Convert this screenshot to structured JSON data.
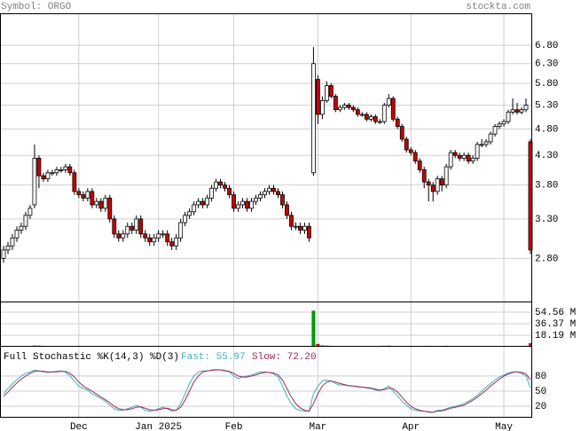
{
  "header": {
    "symbol": "Symbol: ORGO",
    "source": "stockta.com"
  },
  "chart_data": [
    {
      "type": "candlestick",
      "log_scale": true,
      "grid": true,
      "up_color": "#ffffff",
      "down_color": "#cc0000",
      "categories": [
        null,
        null,
        null,
        null,
        null,
        null,
        null,
        null,
        null,
        null,
        null,
        null,
        null,
        null,
        null,
        null,
        null,
        "Dec",
        null,
        null,
        null,
        null,
        null,
        null,
        null,
        null,
        null,
        null,
        null,
        null,
        null,
        null,
        null,
        null,
        null,
        "Jan 2025",
        null,
        null,
        null,
        null,
        null,
        null,
        null,
        null,
        null,
        null,
        null,
        null,
        null,
        null,
        null,
        null,
        "Feb",
        null,
        null,
        null,
        null,
        null,
        null,
        null,
        null,
        null,
        null,
        null,
        null,
        null,
        null,
        null,
        null,
        null,
        null,
        "Mar",
        null,
        null,
        null,
        null,
        null,
        null,
        null,
        null,
        null,
        null,
        null,
        null,
        null,
        null,
        null,
        null,
        null,
        null,
        null,
        null,
        "Apr",
        null,
        null,
        null,
        null,
        null,
        null,
        null,
        null,
        null,
        null,
        null,
        null,
        null,
        null,
        null,
        null,
        null,
        null,
        null,
        null,
        "May",
        null,
        null,
        null,
        null,
        null,
        null
      ],
      "open": [
        2.8,
        2.9,
        2.95,
        3.05,
        3.15,
        3.2,
        3.35,
        3.5,
        4.25,
        3.95,
        3.9,
        4.0,
        4.0,
        4.05,
        4.05,
        4.1,
        4.0,
        3.7,
        3.65,
        3.6,
        3.7,
        3.5,
        3.55,
        3.45,
        3.6,
        3.3,
        3.1,
        3.05,
        3.1,
        3.2,
        3.15,
        3.3,
        3.1,
        3.05,
        3.0,
        3.05,
        3.1,
        3.1,
        3.0,
        2.95,
        3.05,
        3.25,
        3.35,
        3.4,
        3.5,
        3.55,
        3.5,
        3.6,
        3.75,
        3.85,
        3.8,
        3.75,
        3.65,
        3.45,
        3.5,
        3.55,
        3.45,
        3.55,
        3.6,
        3.65,
        3.7,
        3.75,
        3.7,
        3.65,
        3.5,
        3.35,
        3.2,
        3.2,
        3.15,
        3.2,
        4.0,
        5.9,
        5.1,
        5.4,
        5.75,
        5.5,
        5.2,
        5.25,
        5.3,
        5.25,
        5.2,
        5.1,
        5.1,
        5.0,
        5.05,
        4.95,
        4.95,
        5.3,
        5.45,
        5.0,
        4.85,
        4.6,
        4.4,
        4.35,
        4.2,
        4.05,
        3.85,
        3.8,
        3.7,
        3.9,
        3.8,
        4.1,
        4.35,
        4.3,
        4.25,
        4.3,
        4.2,
        4.25,
        4.5,
        4.5,
        4.55,
        4.7,
        4.85,
        4.9,
        4.95,
        5.15,
        5.2,
        5.15,
        5.2,
        4.55
      ],
      "high": [
        2.95,
        3.0,
        3.1,
        3.2,
        3.25,
        3.4,
        3.5,
        4.5,
        4.3,
        4.0,
        4.05,
        4.05,
        4.1,
        4.1,
        4.15,
        4.15,
        4.05,
        3.75,
        3.7,
        3.75,
        3.75,
        3.6,
        3.6,
        3.65,
        3.65,
        3.35,
        3.15,
        3.15,
        3.25,
        3.25,
        3.35,
        3.35,
        3.15,
        3.1,
        3.1,
        3.15,
        3.15,
        3.15,
        3.05,
        3.1,
        3.3,
        3.4,
        3.45,
        3.55,
        3.6,
        3.6,
        3.65,
        3.8,
        3.9,
        3.9,
        3.85,
        3.8,
        3.7,
        3.55,
        3.6,
        3.6,
        3.6,
        3.65,
        3.7,
        3.75,
        3.8,
        3.8,
        3.75,
        3.7,
        3.55,
        3.4,
        3.25,
        3.25,
        3.25,
        3.25,
        6.75,
        6.0,
        5.5,
        5.85,
        5.8,
        5.55,
        5.3,
        5.35,
        5.35,
        5.3,
        5.25,
        5.15,
        5.15,
        5.1,
        5.1,
        5.0,
        5.35,
        5.55,
        5.5,
        5.05,
        4.9,
        4.65,
        4.45,
        4.4,
        4.25,
        4.1,
        3.9,
        3.85,
        3.95,
        3.95,
        4.15,
        4.4,
        4.4,
        4.35,
        4.35,
        4.35,
        4.3,
        4.55,
        4.6,
        4.6,
        4.75,
        4.9,
        4.95,
        5.0,
        5.2,
        5.45,
        5.35,
        5.25,
        5.45,
        4.6
      ],
      "low": [
        2.75,
        2.85,
        2.9,
        3.0,
        3.1,
        3.15,
        3.3,
        3.45,
        3.75,
        3.85,
        3.85,
        3.95,
        3.95,
        4.0,
        4.0,
        3.95,
        3.65,
        3.6,
        3.55,
        3.55,
        3.45,
        3.45,
        3.4,
        3.4,
        3.25,
        3.05,
        3.0,
        3.0,
        3.05,
        3.1,
        3.1,
        3.05,
        3.0,
        2.95,
        2.95,
        3.0,
        3.05,
        2.95,
        2.9,
        2.9,
        3.0,
        3.2,
        3.3,
        3.35,
        3.45,
        3.45,
        3.45,
        3.55,
        3.7,
        3.75,
        3.7,
        3.6,
        3.4,
        3.4,
        3.45,
        3.4,
        3.4,
        3.5,
        3.55,
        3.6,
        3.65,
        3.65,
        3.6,
        3.45,
        3.3,
        3.15,
        3.15,
        3.1,
        3.1,
        3.0,
        3.95,
        4.9,
        5.0,
        5.35,
        5.45,
        5.15,
        5.15,
        5.2,
        5.2,
        5.15,
        5.05,
        5.05,
        4.95,
        4.95,
        4.9,
        4.9,
        4.9,
        5.25,
        4.95,
        4.8,
        4.55,
        4.35,
        4.3,
        4.15,
        4.0,
        3.75,
        3.55,
        3.55,
        3.65,
        3.7,
        3.75,
        4.05,
        4.25,
        4.2,
        4.2,
        4.15,
        4.15,
        4.2,
        4.45,
        4.45,
        4.5,
        4.65,
        4.8,
        4.85,
        4.9,
        5.1,
        5.1,
        5.1,
        5.15,
        2.85
      ],
      "close": [
        2.9,
        2.95,
        3.05,
        3.15,
        3.2,
        3.35,
        3.45,
        4.25,
        3.95,
        3.9,
        4.0,
        4.0,
        4.05,
        4.05,
        4.1,
        4.0,
        3.7,
        3.65,
        3.6,
        3.7,
        3.5,
        3.55,
        3.45,
        3.6,
        3.3,
        3.1,
        3.05,
        3.1,
        3.2,
        3.15,
        3.3,
        3.1,
        3.05,
        3.0,
        3.05,
        3.1,
        3.1,
        3.0,
        2.95,
        3.05,
        3.25,
        3.35,
        3.4,
        3.5,
        3.55,
        3.5,
        3.6,
        3.75,
        3.85,
        3.8,
        3.75,
        3.65,
        3.45,
        3.5,
        3.55,
        3.45,
        3.55,
        3.6,
        3.65,
        3.7,
        3.75,
        3.7,
        3.65,
        3.5,
        3.35,
        3.2,
        3.2,
        3.15,
        3.2,
        3.05,
        6.3,
        5.1,
        5.4,
        5.75,
        5.5,
        5.2,
        5.25,
        5.3,
        5.25,
        5.2,
        5.1,
        5.1,
        5.0,
        5.05,
        4.95,
        4.95,
        5.3,
        5.45,
        5.0,
        4.85,
        4.6,
        4.4,
        4.35,
        4.2,
        4.05,
        3.85,
        3.8,
        3.7,
        3.9,
        3.8,
        4.1,
        4.35,
        4.3,
        4.25,
        4.3,
        4.2,
        4.25,
        4.5,
        4.5,
        4.55,
        4.7,
        4.85,
        4.9,
        4.95,
        5.15,
        5.2,
        5.15,
        5.2,
        5.3,
        2.9
      ],
      "ylim": [
        2.34,
        7.74
      ],
      "yticks": [
        {
          "value": 6.8,
          "label": "6.80"
        },
        {
          "value": 6.3,
          "label": "6.30"
        },
        {
          "value": 5.8,
          "label": "5.80"
        },
        {
          "value": 5.3,
          "label": "5.30"
        },
        {
          "value": 4.8,
          "label": "4.80"
        },
        {
          "value": 4.3,
          "label": "4.30"
        },
        {
          "value": 3.8,
          "label": "3.80"
        },
        {
          "value": 3.3,
          "label": "3.30"
        },
        {
          "value": 2.8,
          "label": "2.80"
        }
      ]
    },
    {
      "type": "bar",
      "up_color": "#009900",
      "down_color": "#cc0000",
      "values": [
        0.6,
        0.7,
        0.8,
        0.7,
        0.9,
        1.0,
        1.2,
        2.0,
        1.8,
        1.0,
        0.8,
        0.7,
        0.6,
        0.6,
        0.7,
        0.8,
        1.1,
        0.9,
        0.8,
        0.7,
        0.9,
        0.7,
        0.8,
        0.7,
        1.0,
        1.2,
        1.0,
        0.8,
        0.7,
        0.7,
        0.9,
        0.8,
        0.7,
        0.6,
        0.6,
        0.7,
        0.8,
        0.9,
        1.0,
        0.8,
        1.1,
        0.9,
        0.8,
        0.8,
        0.7,
        0.7,
        0.8,
        0.9,
        1.0,
        0.8,
        0.7,
        0.8,
        1.0,
        0.8,
        0.7,
        0.7,
        0.6,
        0.6,
        0.7,
        0.7,
        0.8,
        0.7,
        0.8,
        0.9,
        1.0,
        1.1,
        0.9,
        0.8,
        0.9,
        1.3,
        57.0,
        4.5,
        2.2,
        1.8,
        1.5,
        1.2,
        1.0,
        1.0,
        0.9,
        0.9,
        0.8,
        0.8,
        0.9,
        0.9,
        0.8,
        0.8,
        1.6,
        1.8,
        1.4,
        1.2,
        1.3,
        1.2,
        1.0,
        0.9,
        1.1,
        1.3,
        1.5,
        1.2,
        1.4,
        1.0,
        1.6,
        1.2,
        1.0,
        0.9,
        0.8,
        0.9,
        0.8,
        1.0,
        0.9,
        0.8,
        1.4,
        1.2,
        1.0,
        0.9,
        1.2,
        1.3,
        1.0,
        0.9,
        1.6,
        5.5
      ],
      "ylim": [
        0,
        70
      ],
      "yticks": [
        {
          "value": 54.56,
          "label": "54.56 M"
        },
        {
          "value": 36.37,
          "label": "36.37 M"
        },
        {
          "value": 18.19,
          "label": "18.19 M"
        }
      ]
    },
    {
      "type": "line",
      "title": "Full Stochastic %K(14,3) %D(3)",
      "series": [
        {
          "name": "Fast: 55.97",
          "color": "#3fb0b8",
          "values": [
            45,
            55,
            65,
            72,
            80,
            85,
            88,
            92,
            90,
            88,
            87,
            88,
            89,
            90,
            88,
            80,
            70,
            60,
            55,
            52,
            45,
            40,
            35,
            30,
            22,
            15,
            12,
            12,
            15,
            18,
            22,
            18,
            12,
            10,
            12,
            15,
            18,
            15,
            10,
            12,
            25,
            45,
            65,
            80,
            88,
            90,
            90,
            92,
            93,
            92,
            90,
            88,
            80,
            75,
            78,
            80,
            82,
            85,
            88,
            88,
            87,
            84,
            78,
            60,
            40,
            25,
            15,
            12,
            10,
            10,
            45,
            60,
            70,
            72,
            70,
            65,
            62,
            62,
            60,
            60,
            58,
            58,
            56,
            55,
            52,
            50,
            55,
            60,
            50,
            40,
            30,
            22,
            15,
            12,
            10,
            10,
            8,
            8,
            12,
            12,
            15,
            18,
            20,
            22,
            25,
            30,
            35,
            42,
            50,
            58,
            65,
            72,
            78,
            82,
            86,
            88,
            88,
            85,
            80,
            55.97
          ]
        },
        {
          "name": "Slow: 72.20",
          "color": "#a0285a",
          "values": [
            40,
            48,
            58,
            66,
            74,
            80,
            85,
            89,
            90,
            89,
            88,
            88,
            88,
            89,
            89,
            85,
            78,
            68,
            60,
            55,
            50,
            44,
            38,
            33,
            27,
            20,
            15,
            13,
            13,
            15,
            18,
            19,
            16,
            13,
            12,
            13,
            15,
            16,
            13,
            12,
            18,
            32,
            50,
            68,
            80,
            88,
            90,
            91,
            92,
            92,
            91,
            89,
            85,
            80,
            78,
            78,
            80,
            82,
            85,
            87,
            87,
            86,
            82,
            72,
            55,
            38,
            25,
            17,
            12,
            10,
            25,
            45,
            60,
            68,
            70,
            68,
            65,
            63,
            61,
            60,
            59,
            58,
            57,
            56,
            54,
            52,
            53,
            56,
            55,
            48,
            38,
            28,
            20,
            15,
            12,
            10,
            9,
            8,
            10,
            11,
            13,
            16,
            18,
            20,
            22,
            27,
            32,
            38,
            45,
            52,
            60,
            67,
            74,
            80,
            84,
            87,
            88,
            87,
            84,
            72.2
          ]
        }
      ],
      "ylim": [
        -1,
        138
      ],
      "yticks": [
        80,
        50,
        20
      ]
    }
  ]
}
